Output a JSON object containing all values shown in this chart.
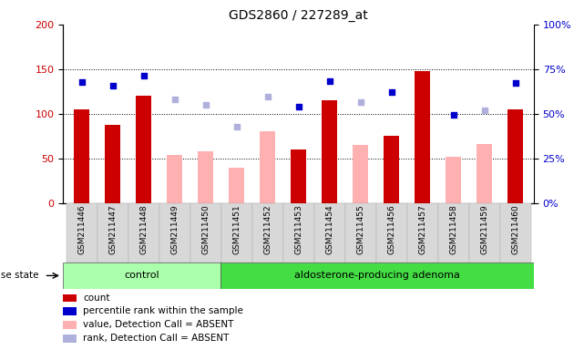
{
  "title": "GDS2860 / 227289_at",
  "samples": [
    "GSM211446",
    "GSM211447",
    "GSM211448",
    "GSM211449",
    "GSM211450",
    "GSM211451",
    "GSM211452",
    "GSM211453",
    "GSM211454",
    "GSM211455",
    "GSM211456",
    "GSM211457",
    "GSM211458",
    "GSM211459",
    "GSM211460"
  ],
  "n_control": 5,
  "n_adenoma": 10,
  "count": [
    105,
    88,
    120,
    null,
    null,
    null,
    null,
    60,
    115,
    null,
    75,
    148,
    null,
    null,
    105
  ],
  "percentile_rank": [
    136,
    131,
    143,
    null,
    null,
    null,
    null,
    108,
    137,
    null,
    124,
    null,
    99,
    null,
    135
  ],
  "value_absent": [
    null,
    null,
    null,
    54,
    58,
    40,
    80,
    null,
    null,
    65,
    null,
    null,
    52,
    66,
    null
  ],
  "rank_absent": [
    null,
    null,
    null,
    116,
    110,
    85,
    119,
    null,
    null,
    113,
    null,
    null,
    null,
    104,
    null
  ],
  "ylim_left": [
    0,
    200
  ],
  "ylim_right": [
    0,
    100
  ],
  "yticks_left": [
    0,
    50,
    100,
    150,
    200
  ],
  "yticks_right": [
    0,
    25,
    50,
    75,
    100
  ],
  "left_tick_color": "#cc0000",
  "right_tick_color": "#0000cc",
  "count_color": "#cc0000",
  "percentile_color": "#0000cc",
  "value_absent_color": "#ffb0b0",
  "rank_absent_color": "#b0b0dd",
  "group_control_color": "#aaffaa",
  "group_adenoma_color": "#44dd44",
  "group_labels": [
    "control",
    "aldosterone-producing adenoma"
  ],
  "disease_state_label": "disease state",
  "legend_items": [
    {
      "label": "count",
      "color": "#cc0000"
    },
    {
      "label": "percentile rank within the sample",
      "color": "#0000cc"
    },
    {
      "label": "value, Detection Call = ABSENT",
      "color": "#ffb0b0"
    },
    {
      "label": "rank, Detection Call = ABSENT",
      "color": "#b0b0dd"
    }
  ],
  "figsize": [
    6.3,
    3.84
  ],
  "dpi": 100
}
